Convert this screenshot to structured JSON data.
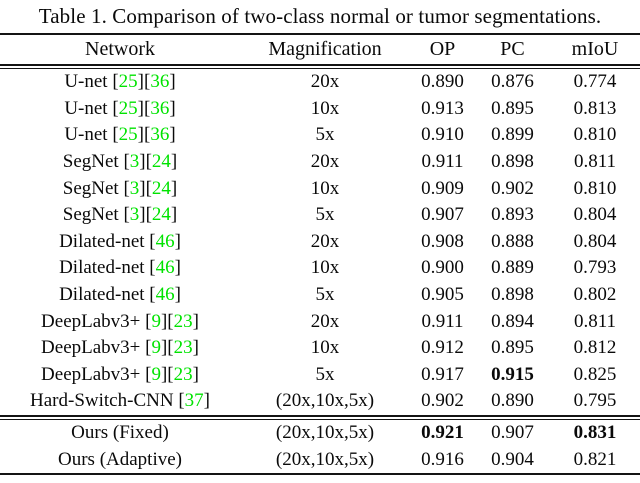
{
  "title": "Table 1. Comparison of two-class normal or tumor segmentations.",
  "colors": {
    "citation_green": "#00e300",
    "text": "#0a0a0a",
    "rule": "#141414"
  },
  "table": {
    "headers": [
      "Network",
      "Magnification",
      "OP",
      "PC",
      "mIoU"
    ],
    "sections": [
      {
        "rows": [
          {
            "network": "U-net",
            "citations": [
              "25",
              "36"
            ],
            "magnification": "20x",
            "op": "0.890",
            "pc": "0.876",
            "miou": "0.774",
            "bold": []
          },
          {
            "network": "U-net",
            "citations": [
              "25",
              "36"
            ],
            "magnification": "10x",
            "op": "0.913",
            "pc": "0.895",
            "miou": "0.813",
            "bold": []
          },
          {
            "network": "U-net",
            "citations": [
              "25",
              "36"
            ],
            "magnification": "5x",
            "op": "0.910",
            "pc": "0.899",
            "miou": "0.810",
            "bold": []
          },
          {
            "network": "SegNet",
            "citations": [
              "3",
              "24"
            ],
            "magnification": "20x",
            "op": "0.911",
            "pc": "0.898",
            "miou": "0.811",
            "bold": []
          },
          {
            "network": "SegNet",
            "citations": [
              "3",
              "24"
            ],
            "magnification": "10x",
            "op": "0.909",
            "pc": "0.902",
            "miou": "0.810",
            "bold": []
          },
          {
            "network": "SegNet",
            "citations": [
              "3",
              "24"
            ],
            "magnification": "5x",
            "op": "0.907",
            "pc": "0.893",
            "miou": "0.804",
            "bold": []
          },
          {
            "network": "Dilated-net",
            "citations": [
              "46"
            ],
            "magnification": "20x",
            "op": "0.908",
            "pc": "0.888",
            "miou": "0.804",
            "bold": []
          },
          {
            "network": "Dilated-net",
            "citations": [
              "46"
            ],
            "magnification": "10x",
            "op": "0.900",
            "pc": "0.889",
            "miou": "0.793",
            "bold": []
          },
          {
            "network": "Dilated-net",
            "citations": [
              "46"
            ],
            "magnification": "5x",
            "op": "0.905",
            "pc": "0.898",
            "miou": "0.802",
            "bold": []
          },
          {
            "network": "DeepLabv3+",
            "citations": [
              "9",
              "23"
            ],
            "magnification": "20x",
            "op": "0.911",
            "pc": "0.894",
            "miou": "0.811",
            "bold": []
          },
          {
            "network": "DeepLabv3+",
            "citations": [
              "9",
              "23"
            ],
            "magnification": "10x",
            "op": "0.912",
            "pc": "0.895",
            "miou": "0.812",
            "bold": []
          },
          {
            "network": "DeepLabv3+",
            "citations": [
              "9",
              "23"
            ],
            "magnification": "5x",
            "op": "0.917",
            "pc": "0.915",
            "miou": "0.825",
            "bold": [
              "pc"
            ]
          },
          {
            "network": "Hard-Switch-CNN",
            "citations": [
              "37"
            ],
            "magnification": "(20x,10x,5x)",
            "op": "0.902",
            "pc": "0.890",
            "miou": "0.795",
            "bold": []
          }
        ]
      },
      {
        "rows": [
          {
            "network": "Ours (Fixed)",
            "citations": [],
            "magnification": "(20x,10x,5x)",
            "op": "0.921",
            "pc": "0.907",
            "miou": "0.831",
            "bold": [
              "op",
              "miou"
            ]
          },
          {
            "network": "Ours (Adaptive)",
            "citations": [],
            "magnification": "(20x,10x,5x)",
            "op": "0.916",
            "pc": "0.904",
            "miou": "0.821",
            "bold": []
          }
        ]
      }
    ]
  }
}
